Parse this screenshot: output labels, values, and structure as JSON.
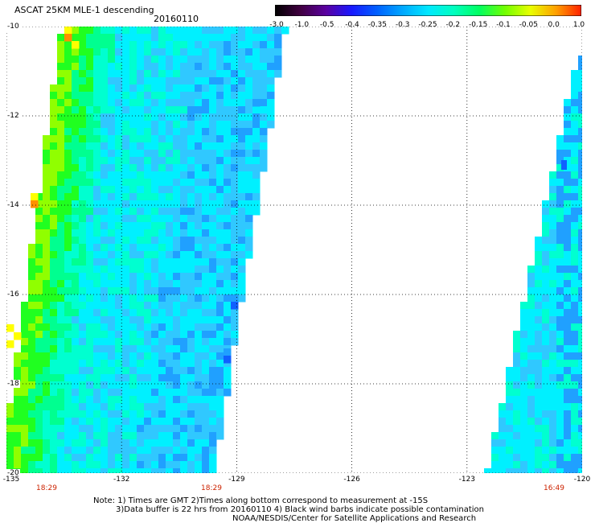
{
  "header": {
    "title": "ASCAT 25KM MLE-1 descending",
    "date": "20160110"
  },
  "colorbar": {
    "tick_labels": [
      "-3.0",
      "-1.0",
      "-0.5",
      "-0.4",
      "-0.35",
      "-0.3",
      "-0.25",
      "-0.2",
      "-0.15",
      "-0.1",
      "-0.05",
      "0.0",
      "1.0"
    ],
    "colors": [
      "#000000",
      "#400040",
      "#5a00a0",
      "#1818ff",
      "#0060ff",
      "#00a8ff",
      "#00e8ff",
      "#00ffc0",
      "#00ff60",
      "#70ff00",
      "#e8ff00",
      "#ffa000",
      "#ff2000"
    ]
  },
  "axes": {
    "lat_labels": [
      "-10",
      "-12",
      "-14",
      "-16",
      "-18",
      "-20"
    ],
    "lon_labels": [
      "-135",
      "-132",
      "-129",
      "-126",
      "-123",
      "-120"
    ],
    "lat_range": [
      -20,
      -10
    ],
    "lon_range": [
      -135,
      -120
    ]
  },
  "time_labels": [
    "18:29",
    "18:29",
    "16:49"
  ],
  "notes": {
    "line1": "Note: 1) Times are GMT 2)Times along bottom correspond to measurement at -15S",
    "line2": "3)Data buffer is 22 hrs from 20160110 4) Black wind barbs indicate possible contamination",
    "line3": "NOAA/NESDIS/Center for Satellite Applications and Research"
  },
  "swath_colors": {
    "deep_blue": "#1060ff",
    "blue": "#20a0ff",
    "light_blue": "#30c8ff",
    "cyan": "#00f0ff",
    "aqua": "#00ffd0",
    "green_cyan": "#00ff90",
    "green": "#20ff20",
    "yellow_green": "#90ff00",
    "yellow": "#ffff00",
    "orange": "#ff9000"
  }
}
